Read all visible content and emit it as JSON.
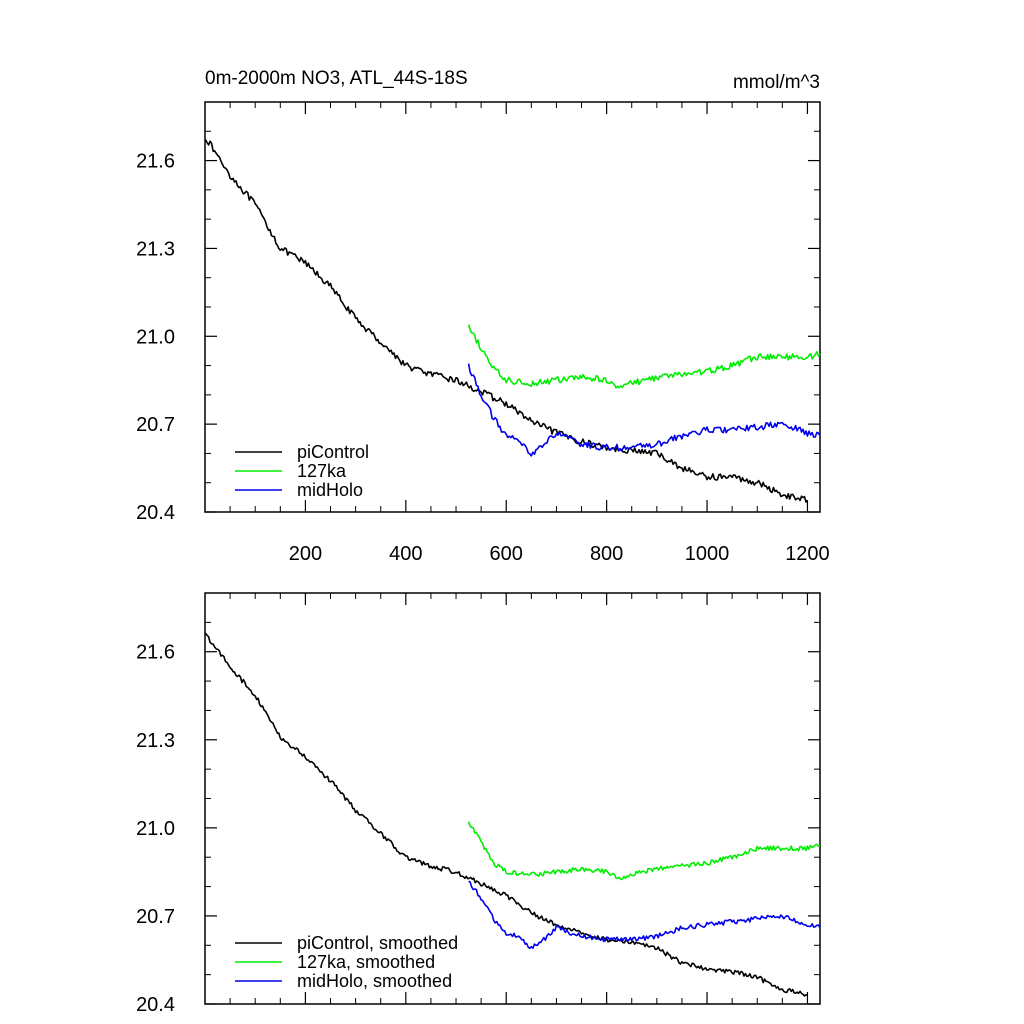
{
  "chart_data": [
    {
      "type": "line",
      "title": "0m-2000m NO3, ATL_44S-18S",
      "units": "mmol/m^3",
      "xlim": [
        0,
        1225
      ],
      "ylim": [
        20.4,
        21.8
      ],
      "xticks": [
        200,
        400,
        600,
        800,
        1000,
        1200
      ],
      "xtick_labels": [
        "200",
        "400",
        "600",
        "800",
        "1000",
        "1200"
      ],
      "yticks": [
        20.4,
        20.7,
        21.0,
        21.3,
        21.6
      ],
      "ytick_labels": [
        "20.4",
        "20.7",
        "21.0",
        "21.3",
        "21.6"
      ],
      "legend_position": "bottom-left",
      "series": [
        {
          "name": "piControl",
          "color": "#000000",
          "points": [
            [
              1,
              21.68
            ],
            [
              50,
              21.55
            ],
            [
              100,
              21.45
            ],
            [
              150,
              21.3
            ],
            [
              200,
              21.25
            ],
            [
              250,
              21.17
            ],
            [
              300,
              21.06
            ],
            [
              350,
              20.98
            ],
            [
              400,
              20.9
            ],
            [
              450,
              20.87
            ],
            [
              500,
              20.85
            ],
            [
              550,
              20.81
            ],
            [
              600,
              20.77
            ],
            [
              650,
              20.71
            ],
            [
              700,
              20.67
            ],
            [
              750,
              20.64
            ],
            [
              800,
              20.62
            ],
            [
              850,
              20.61
            ],
            [
              900,
              20.6
            ],
            [
              950,
              20.55
            ],
            [
              1000,
              20.52
            ],
            [
              1050,
              20.52
            ],
            [
              1100,
              20.5
            ],
            [
              1150,
              20.46
            ],
            [
              1200,
              20.44
            ]
          ]
        },
        {
          "name": "127ka",
          "color": "#00ee00",
          "points": [
            [
              525,
              21.03
            ],
            [
              550,
              20.96
            ],
            [
              575,
              20.89
            ],
            [
              600,
              20.85
            ],
            [
              650,
              20.84
            ],
            [
              700,
              20.85
            ],
            [
              750,
              20.86
            ],
            [
              800,
              20.85
            ],
            [
              825,
              20.83
            ],
            [
              850,
              20.84
            ],
            [
              900,
              20.86
            ],
            [
              950,
              20.87
            ],
            [
              1000,
              20.88
            ],
            [
              1050,
              20.9
            ],
            [
              1100,
              20.93
            ],
            [
              1150,
              20.93
            ],
            [
              1200,
              20.93
            ],
            [
              1225,
              20.94
            ]
          ]
        },
        {
          "name": "midHolo",
          "color": "#0000ee",
          "points": [
            [
              525,
              20.9
            ],
            [
              550,
              20.8
            ],
            [
              575,
              20.72
            ],
            [
              600,
              20.66
            ],
            [
              625,
              20.64
            ],
            [
              650,
              20.6
            ],
            [
              675,
              20.63
            ],
            [
              700,
              20.67
            ],
            [
              750,
              20.63
            ],
            [
              800,
              20.62
            ],
            [
              850,
              20.62
            ],
            [
              900,
              20.63
            ],
            [
              950,
              20.66
            ],
            [
              1000,
              20.68
            ],
            [
              1050,
              20.68
            ],
            [
              1100,
              20.69
            ],
            [
              1150,
              20.7
            ],
            [
              1200,
              20.67
            ],
            [
              1225,
              20.66
            ]
          ]
        }
      ]
    },
    {
      "type": "line",
      "xlim": [
        0,
        1225
      ],
      "ylim": [
        20.4,
        21.8
      ],
      "xticks": [
        200,
        400,
        600,
        800,
        1000,
        1200
      ],
      "yticks": [
        20.4,
        20.7,
        21.0,
        21.3,
        21.6
      ],
      "ytick_labels": [
        "20.4",
        "20.7",
        "21.0",
        "21.3",
        "21.6"
      ],
      "legend_position": "bottom-left",
      "series": [
        {
          "name": "piControl, smoothed",
          "color": "#000000",
          "points": [
            [
              1,
              21.66
            ],
            [
              50,
              21.55
            ],
            [
              100,
              21.45
            ],
            [
              150,
              21.31
            ],
            [
              200,
              21.24
            ],
            [
              250,
              21.16
            ],
            [
              300,
              21.06
            ],
            [
              350,
              20.98
            ],
            [
              400,
              20.9
            ],
            [
              450,
              20.87
            ],
            [
              500,
              20.85
            ],
            [
              550,
              20.81
            ],
            [
              600,
              20.77
            ],
            [
              650,
              20.71
            ],
            [
              700,
              20.67
            ],
            [
              750,
              20.64
            ],
            [
              800,
              20.62
            ],
            [
              850,
              20.61
            ],
            [
              900,
              20.59
            ],
            [
              950,
              20.54
            ],
            [
              1000,
              20.52
            ],
            [
              1050,
              20.51
            ],
            [
              1100,
              20.49
            ],
            [
              1150,
              20.45
            ],
            [
              1200,
              20.43
            ]
          ]
        },
        {
          "name": "127ka, smoothed",
          "color": "#00ee00",
          "points": [
            [
              525,
              21.02
            ],
            [
              550,
              20.95
            ],
            [
              575,
              20.88
            ],
            [
              600,
              20.85
            ],
            [
              650,
              20.84
            ],
            [
              700,
              20.85
            ],
            [
              750,
              20.86
            ],
            [
              800,
              20.85
            ],
            [
              825,
              20.83
            ],
            [
              850,
              20.84
            ],
            [
              900,
              20.86
            ],
            [
              950,
              20.87
            ],
            [
              1000,
              20.88
            ],
            [
              1050,
              20.9
            ],
            [
              1100,
              20.93
            ],
            [
              1150,
              20.93
            ],
            [
              1200,
              20.93
            ],
            [
              1225,
              20.94
            ]
          ]
        },
        {
          "name": "midHolo, smoothed",
          "color": "#0000ee",
          "points": [
            [
              525,
              20.82
            ],
            [
              550,
              20.76
            ],
            [
              575,
              20.69
            ],
            [
              600,
              20.64
            ],
            [
              625,
              20.63
            ],
            [
              650,
              20.59
            ],
            [
              675,
              20.62
            ],
            [
              700,
              20.66
            ],
            [
              750,
              20.63
            ],
            [
              800,
              20.62
            ],
            [
              850,
              20.62
            ],
            [
              900,
              20.63
            ],
            [
              950,
              20.66
            ],
            [
              1000,
              20.67
            ],
            [
              1050,
              20.68
            ],
            [
              1100,
              20.69
            ],
            [
              1150,
              20.7
            ],
            [
              1200,
              20.67
            ],
            [
              1225,
              20.66
            ]
          ]
        }
      ]
    }
  ]
}
